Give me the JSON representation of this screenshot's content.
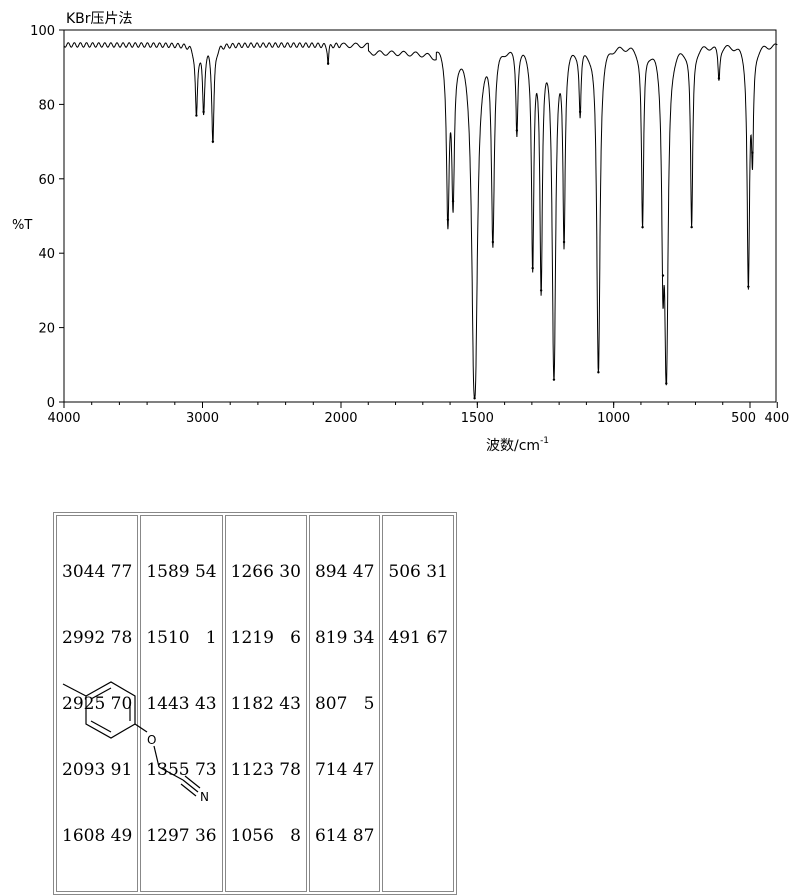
{
  "chart_data": {
    "type": "line",
    "title": "KBr压片法",
    "xlabel": "波数/cm",
    "xlabel_superscript": "-1",
    "ylabel": "%T",
    "xlim": [
      4000,
      400
    ],
    "ylim": [
      0,
      100
    ],
    "x_ticks": [
      4000,
      3000,
      2000,
      1500,
      1000,
      500,
      400
    ],
    "x_tick_labels": [
      "4000",
      "3000",
      "2000",
      "1500",
      "1000",
      "500",
      "400"
    ],
    "y_ticks": [
      0,
      20,
      40,
      60,
      80,
      100
    ],
    "y_tick_labels": [
      "0",
      "20",
      "40",
      "60",
      "80",
      "100"
    ],
    "grid": false,
    "baseline": 96,
    "peaks": [
      {
        "x": 3044,
        "y": 77
      },
      {
        "x": 2992,
        "y": 78
      },
      {
        "x": 2925,
        "y": 70
      },
      {
        "x": 2093,
        "y": 91
      },
      {
        "x": 1608,
        "y": 49
      },
      {
        "x": 1589,
        "y": 54
      },
      {
        "x": 1510,
        "y": 1
      },
      {
        "x": 1443,
        "y": 43
      },
      {
        "x": 1355,
        "y": 73
      },
      {
        "x": 1297,
        "y": 36
      },
      {
        "x": 1266,
        "y": 30
      },
      {
        "x": 1219,
        "y": 6
      },
      {
        "x": 1182,
        "y": 43
      },
      {
        "x": 1123,
        "y": 78
      },
      {
        "x": 1056,
        "y": 8
      },
      {
        "x": 894,
        "y": 47
      },
      {
        "x": 819,
        "y": 34
      },
      {
        "x": 807,
        "y": 5
      },
      {
        "x": 714,
        "y": 47
      },
      {
        "x": 614,
        "y": 87
      },
      {
        "x": 506,
        "y": 31
      },
      {
        "x": 491,
        "y": 67
      }
    ]
  },
  "peak_table": {
    "columns": [
      [
        "3044 77",
        "2992 78",
        "2925 70",
        "2093 91",
        "1608 49"
      ],
      [
        "1589 54",
        "1510   1",
        "1443 43",
        "1355 73",
        "1297 36"
      ],
      [
        "1266 30",
        "1219   6",
        "1182 43",
        "1123 78",
        "1056   8"
      ],
      [
        "894 47",
        "819 34",
        "807   5",
        "714 47",
        "614 87"
      ],
      [
        "506 31",
        "491 67"
      ]
    ]
  },
  "structure": {
    "atom_o": "O",
    "atom_n": "N"
  }
}
